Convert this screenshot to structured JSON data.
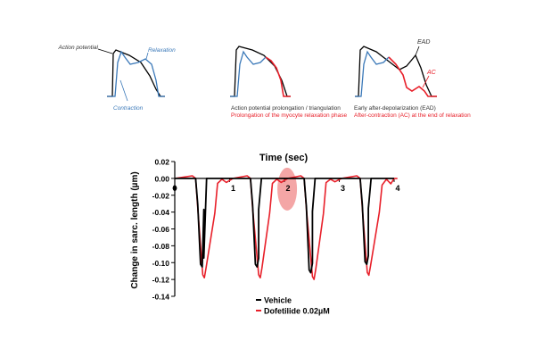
{
  "colors": {
    "black": "#000000",
    "blue": "#3a78b8",
    "red": "#e8202a",
    "highlight": "#f08080",
    "caption_gray": "#333333"
  },
  "schematics": [
    {
      "labels": {
        "action_potential": "Action potential",
        "relaxation": "Relaxation",
        "contraction": "Contraction"
      }
    },
    {
      "caption_line1": "Action potential prolongation / triangulation",
      "caption_line2": "Prolongation of the myocyte relaxation phase"
    },
    {
      "labels": {
        "ead": "EAD",
        "ac": "AC"
      },
      "caption_line1": "Early after-depolarization (EAD)",
      "caption_line2": "After-contraction (AC) at the end of relaxation"
    }
  ],
  "chart_data": {
    "type": "line",
    "title": "Time (sec)",
    "xlabel": "Time (sec)",
    "ylabel": "Change in sarc. length (µm)",
    "xlim": [
      0,
      4
    ],
    "ylim": [
      -0.14,
      0.02
    ],
    "x_ticks": [
      "0",
      "1",
      "2",
      "3",
      "4"
    ],
    "y_ticks": [
      "0.02",
      "0.00",
      "-0.02",
      "-0.04",
      "-0.06",
      "-0.08",
      "-0.10",
      "-0.12",
      "-0.14"
    ],
    "series": [
      {
        "name": "Vehicle",
        "color": "#000000",
        "beats": [
          {
            "start": 0.38,
            "peak_t": 0.5,
            "min": -0.105,
            "end": 0.58
          },
          {
            "start": 1.38,
            "peak_t": 1.5,
            "min": -0.105,
            "end": 1.58
          },
          {
            "start": 2.36,
            "peak_t": 2.48,
            "min": -0.112,
            "end": 2.56
          },
          {
            "start": 3.38,
            "peak_t": 3.5,
            "min": -0.102,
            "end": 3.58
          }
        ]
      },
      {
        "name": "Dofetilide 0.02µM",
        "color": "#e8202a",
        "beats": [
          {
            "start": 0.38,
            "peak_t": 0.54,
            "min": -0.118,
            "end": 0.78,
            "ac": -0.006
          },
          {
            "start": 1.38,
            "peak_t": 1.56,
            "min": -0.118,
            "end": 1.78,
            "ac": -0.006
          },
          {
            "start": 2.36,
            "peak_t": 2.54,
            "min": -0.12,
            "end": 2.76,
            "ac": -0.005
          },
          {
            "start": 3.38,
            "peak_t": 3.54,
            "min": -0.115,
            "end": 3.78,
            "ac": -0.008
          }
        ]
      }
    ],
    "highlight": {
      "x": 2.05,
      "y": 0.0
    },
    "legend": "bottom"
  }
}
